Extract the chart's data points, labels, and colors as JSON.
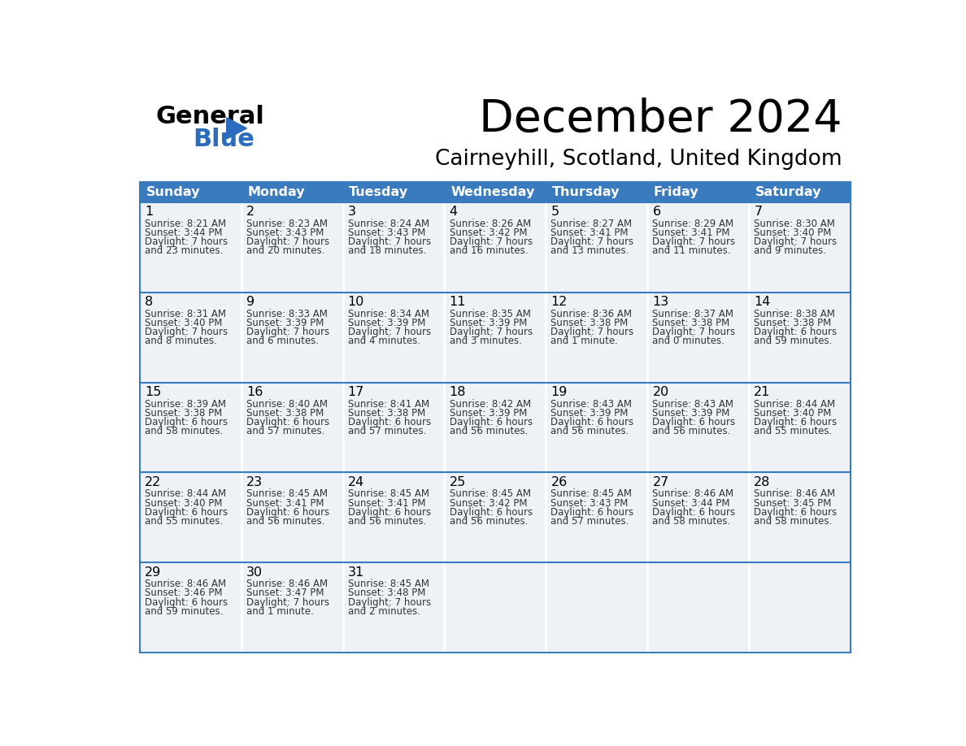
{
  "title": "December 2024",
  "subtitle": "Cairneyhill, Scotland, United Kingdom",
  "header_color": "#3a7abf",
  "header_text_color": "#ffffff",
  "cell_bg_light": "#eef2f7",
  "border_color": "#3a7abf",
  "text_color": "#333333",
  "day_names": [
    "Sunday",
    "Monday",
    "Tuesday",
    "Wednesday",
    "Thursday",
    "Friday",
    "Saturday"
  ],
  "weeks": [
    [
      {
        "day": 1,
        "sunrise": "8:21 AM",
        "sunset": "3:44 PM",
        "daylight_hrs": 7,
        "daylight_min": 23,
        "daylight_unit": "minutes"
      },
      {
        "day": 2,
        "sunrise": "8:23 AM",
        "sunset": "3:43 PM",
        "daylight_hrs": 7,
        "daylight_min": 20,
        "daylight_unit": "minutes"
      },
      {
        "day": 3,
        "sunrise": "8:24 AM",
        "sunset": "3:43 PM",
        "daylight_hrs": 7,
        "daylight_min": 18,
        "daylight_unit": "minutes"
      },
      {
        "day": 4,
        "sunrise": "8:26 AM",
        "sunset": "3:42 PM",
        "daylight_hrs": 7,
        "daylight_min": 16,
        "daylight_unit": "minutes"
      },
      {
        "day": 5,
        "sunrise": "8:27 AM",
        "sunset": "3:41 PM",
        "daylight_hrs": 7,
        "daylight_min": 13,
        "daylight_unit": "minutes"
      },
      {
        "day": 6,
        "sunrise": "8:29 AM",
        "sunset": "3:41 PM",
        "daylight_hrs": 7,
        "daylight_min": 11,
        "daylight_unit": "minutes"
      },
      {
        "day": 7,
        "sunrise": "8:30 AM",
        "sunset": "3:40 PM",
        "daylight_hrs": 7,
        "daylight_min": 9,
        "daylight_unit": "minutes"
      }
    ],
    [
      {
        "day": 8,
        "sunrise": "8:31 AM",
        "sunset": "3:40 PM",
        "daylight_hrs": 7,
        "daylight_min": 8,
        "daylight_unit": "minutes"
      },
      {
        "day": 9,
        "sunrise": "8:33 AM",
        "sunset": "3:39 PM",
        "daylight_hrs": 7,
        "daylight_min": 6,
        "daylight_unit": "minutes"
      },
      {
        "day": 10,
        "sunrise": "8:34 AM",
        "sunset": "3:39 PM",
        "daylight_hrs": 7,
        "daylight_min": 4,
        "daylight_unit": "minutes"
      },
      {
        "day": 11,
        "sunrise": "8:35 AM",
        "sunset": "3:39 PM",
        "daylight_hrs": 7,
        "daylight_min": 3,
        "daylight_unit": "minutes"
      },
      {
        "day": 12,
        "sunrise": "8:36 AM",
        "sunset": "3:38 PM",
        "daylight_hrs": 7,
        "daylight_min": 1,
        "daylight_unit": "minute"
      },
      {
        "day": 13,
        "sunrise": "8:37 AM",
        "sunset": "3:38 PM",
        "daylight_hrs": 7,
        "daylight_min": 0,
        "daylight_unit": "minutes"
      },
      {
        "day": 14,
        "sunrise": "8:38 AM",
        "sunset": "3:38 PM",
        "daylight_hrs": 6,
        "daylight_min": 59,
        "daylight_unit": "minutes"
      }
    ],
    [
      {
        "day": 15,
        "sunrise": "8:39 AM",
        "sunset": "3:38 PM",
        "daylight_hrs": 6,
        "daylight_min": 58,
        "daylight_unit": "minutes"
      },
      {
        "day": 16,
        "sunrise": "8:40 AM",
        "sunset": "3:38 PM",
        "daylight_hrs": 6,
        "daylight_min": 57,
        "daylight_unit": "minutes"
      },
      {
        "day": 17,
        "sunrise": "8:41 AM",
        "sunset": "3:38 PM",
        "daylight_hrs": 6,
        "daylight_min": 57,
        "daylight_unit": "minutes"
      },
      {
        "day": 18,
        "sunrise": "8:42 AM",
        "sunset": "3:39 PM",
        "daylight_hrs": 6,
        "daylight_min": 56,
        "daylight_unit": "minutes"
      },
      {
        "day": 19,
        "sunrise": "8:43 AM",
        "sunset": "3:39 PM",
        "daylight_hrs": 6,
        "daylight_min": 56,
        "daylight_unit": "minutes"
      },
      {
        "day": 20,
        "sunrise": "8:43 AM",
        "sunset": "3:39 PM",
        "daylight_hrs": 6,
        "daylight_min": 56,
        "daylight_unit": "minutes"
      },
      {
        "day": 21,
        "sunrise": "8:44 AM",
        "sunset": "3:40 PM",
        "daylight_hrs": 6,
        "daylight_min": 55,
        "daylight_unit": "minutes"
      }
    ],
    [
      {
        "day": 22,
        "sunrise": "8:44 AM",
        "sunset": "3:40 PM",
        "daylight_hrs": 6,
        "daylight_min": 55,
        "daylight_unit": "minutes"
      },
      {
        "day": 23,
        "sunrise": "8:45 AM",
        "sunset": "3:41 PM",
        "daylight_hrs": 6,
        "daylight_min": 56,
        "daylight_unit": "minutes"
      },
      {
        "day": 24,
        "sunrise": "8:45 AM",
        "sunset": "3:41 PM",
        "daylight_hrs": 6,
        "daylight_min": 56,
        "daylight_unit": "minutes"
      },
      {
        "day": 25,
        "sunrise": "8:45 AM",
        "sunset": "3:42 PM",
        "daylight_hrs": 6,
        "daylight_min": 56,
        "daylight_unit": "minutes"
      },
      {
        "day": 26,
        "sunrise": "8:45 AM",
        "sunset": "3:43 PM",
        "daylight_hrs": 6,
        "daylight_min": 57,
        "daylight_unit": "minutes"
      },
      {
        "day": 27,
        "sunrise": "8:46 AM",
        "sunset": "3:44 PM",
        "daylight_hrs": 6,
        "daylight_min": 58,
        "daylight_unit": "minutes"
      },
      {
        "day": 28,
        "sunrise": "8:46 AM",
        "sunset": "3:45 PM",
        "daylight_hrs": 6,
        "daylight_min": 58,
        "daylight_unit": "minutes"
      }
    ],
    [
      {
        "day": 29,
        "sunrise": "8:46 AM",
        "sunset": "3:46 PM",
        "daylight_hrs": 6,
        "daylight_min": 59,
        "daylight_unit": "minutes"
      },
      {
        "day": 30,
        "sunrise": "8:46 AM",
        "sunset": "3:47 PM",
        "daylight_hrs": 7,
        "daylight_min": 1,
        "daylight_unit": "minute"
      },
      {
        "day": 31,
        "sunrise": "8:45 AM",
        "sunset": "3:48 PM",
        "daylight_hrs": 7,
        "daylight_min": 2,
        "daylight_unit": "minutes"
      },
      null,
      null,
      null,
      null
    ]
  ]
}
